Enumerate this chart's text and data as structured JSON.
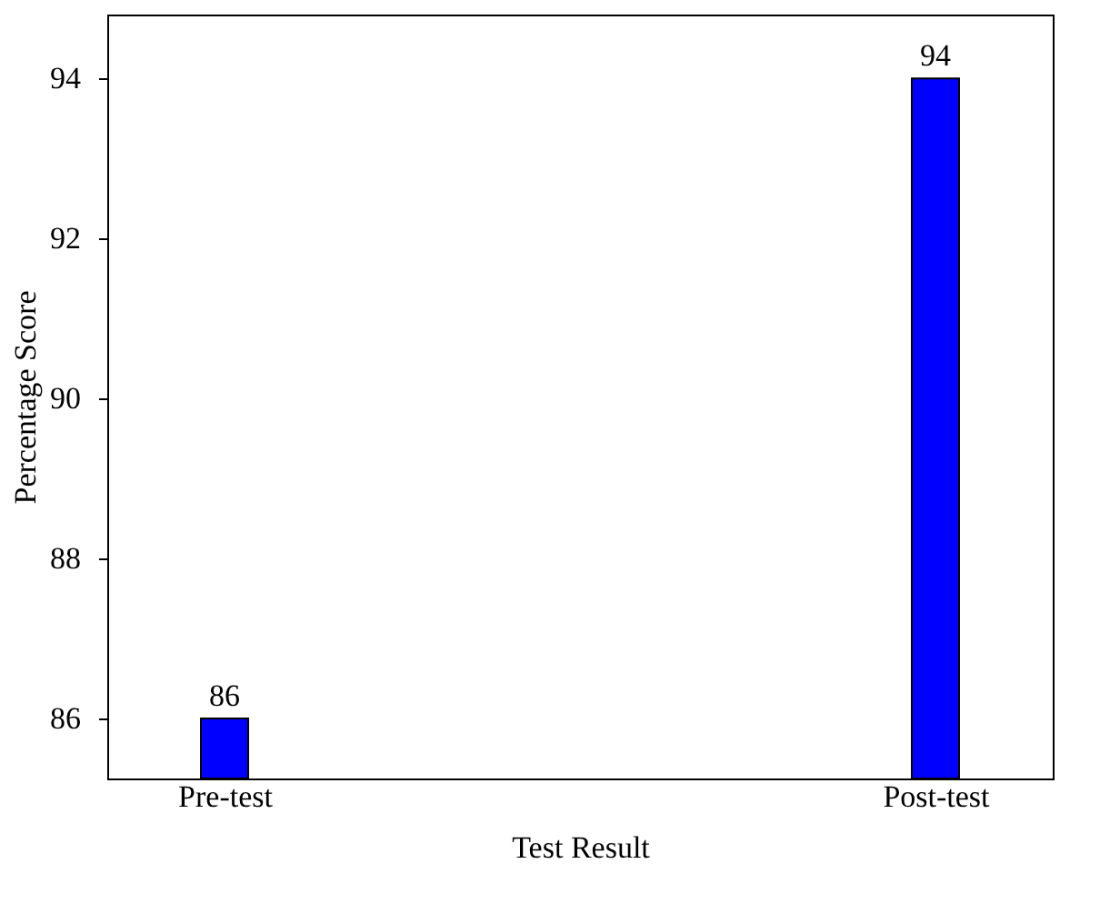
{
  "chart_data": {
    "type": "bar",
    "xlabel": "Test Result",
    "ylabel": "Percentage Score",
    "categories": [
      "Pre-test",
      "Post-test"
    ],
    "values": [
      86,
      94
    ],
    "color": "#0000ff",
    "ylim": [
      85.25,
      94.8
    ],
    "yticks": [
      86,
      88,
      90,
      92,
      94
    ],
    "data_labels": true,
    "grid": false
  }
}
